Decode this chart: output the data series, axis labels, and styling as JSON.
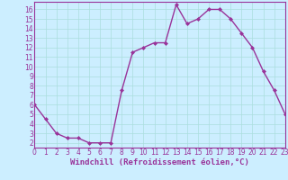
{
  "x": [
    0,
    1,
    2,
    3,
    4,
    5,
    6,
    7,
    8,
    9,
    10,
    11,
    12,
    13,
    14,
    15,
    16,
    17,
    18,
    19,
    20,
    21,
    22,
    23
  ],
  "y": [
    6,
    4.5,
    3,
    2.5,
    2.5,
    2,
    2,
    2,
    7.5,
    11.5,
    12,
    12.5,
    12.5,
    16.5,
    14.5,
    15,
    16,
    16,
    15,
    13.5,
    12,
    9.5,
    7.5,
    5
  ],
  "line_color": "#993399",
  "marker": "D",
  "marker_size": 2.0,
  "bg_color": "#cceeff",
  "grid_color": "#aadddd",
  "xlabel": "Windchill (Refroidissement éolien,°C)",
  "xlim": [
    0,
    23
  ],
  "ylim": [
    1.5,
    16.8
  ],
  "yticks": [
    2,
    3,
    4,
    5,
    6,
    7,
    8,
    9,
    10,
    11,
    12,
    13,
    14,
    15,
    16
  ],
  "xticks": [
    0,
    1,
    2,
    3,
    4,
    5,
    6,
    7,
    8,
    9,
    10,
    11,
    12,
    13,
    14,
    15,
    16,
    17,
    18,
    19,
    20,
    21,
    22,
    23
  ],
  "tick_color": "#993399",
  "axis_label_color": "#993399",
  "spine_color": "#993399",
  "font_size_xlabel": 6.5,
  "font_size_ticks": 5.5,
  "line_width": 1.0
}
